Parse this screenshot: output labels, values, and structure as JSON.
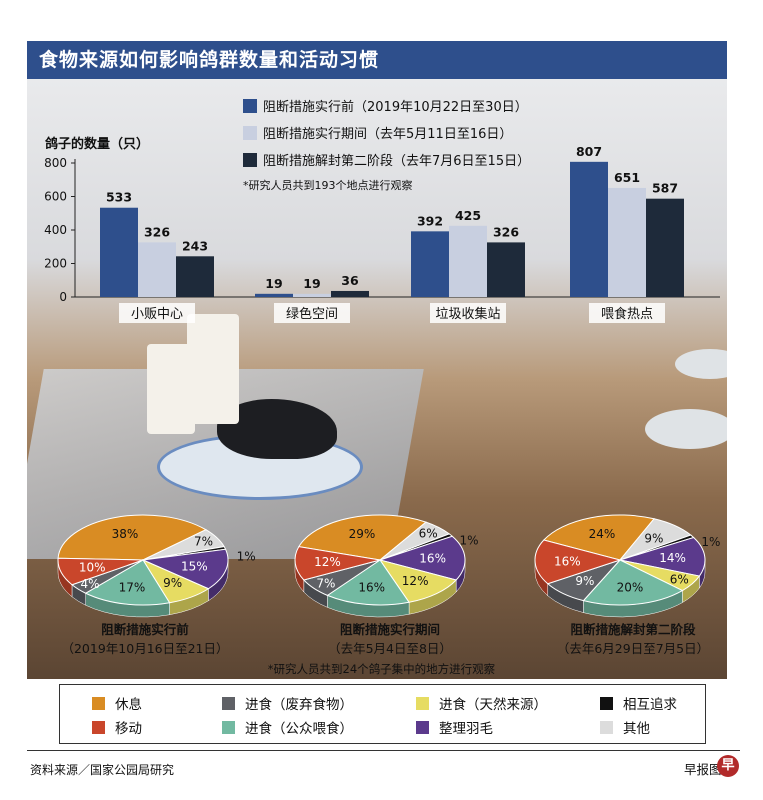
{
  "title": "食物来源如何影响鸽群数量和活动习惯",
  "colors": {
    "title_bg": "#2e4f8c",
    "before": "#2e4f8c",
    "during": "#c8cfe0",
    "after": "#1e2a3a",
    "rest": "#d98c23",
    "move": "#c9462b",
    "eat_waste": "#5f6166",
    "eat_public": "#72b9a1",
    "eat_natural": "#e6dc62",
    "groom": "#5b3a8c",
    "chase": "#111111",
    "other": "#dcdcdc"
  },
  "bar_legend": [
    {
      "label": "阻断措施实行前（2019年10月22日至30日）",
      "color": "#2e4f8c"
    },
    {
      "label": "阻断措施实行期间（去年5月11日至16日）",
      "color": "#c8cfe0"
    },
    {
      "label": "阻断措施解封第二阶段（去年7月6日至15日）",
      "color": "#1e2a3a"
    }
  ],
  "bar_note": "*研究人员共到193个地点进行观察",
  "pie_note": "*研究人员共到24个鸽子集中的地方进行观察",
  "category_legend": [
    {
      "label": "休息",
      "color": "#d98c23"
    },
    {
      "label": "进食（废弃食物）",
      "color": "#5f6166"
    },
    {
      "label": "进食（天然来源）",
      "color": "#e6dc62"
    },
    {
      "label": "相互追求",
      "color": "#111111"
    },
    {
      "label": "移动",
      "color": "#c9462b"
    },
    {
      "label": "进食（公众喂食）",
      "color": "#72b9a1"
    },
    {
      "label": "整理羽毛",
      "color": "#5b3a8c"
    },
    {
      "label": "其他",
      "color": "#dcdcdc"
    }
  ],
  "source": "资料来源／国家公园局研究",
  "brand": "早报图",
  "logo_char": "早",
  "chart_data": [
    {
      "type": "bar",
      "ylabel": "鸽子的数量（只）",
      "ylim": [
        0,
        800
      ],
      "yticks": [
        0,
        200,
        400,
        600,
        800
      ],
      "categories": [
        "小贩中心",
        "绿色空间",
        "垃圾收集站",
        "喂食热点"
      ],
      "series": [
        {
          "name": "阻断措施实行前（2019年10月22日至30日）",
          "values": [
            533,
            19,
            392,
            807
          ]
        },
        {
          "name": "阻断措施实行期间（去年5月11日至16日）",
          "values": [
            326,
            19,
            425,
            651
          ]
        },
        {
          "name": "阻断措施解封第二阶段（去年7月6日至15日）",
          "values": [
            243,
            36,
            326,
            587
          ]
        }
      ]
    },
    {
      "type": "pie",
      "title": "阻断措施实行前",
      "subtitle": "（2019年10月16日至21日）",
      "slices": [
        {
          "category": "休息",
          "value": 38
        },
        {
          "category": "其他",
          "value": 7
        },
        {
          "category": "相互追求",
          "value": 1
        },
        {
          "category": "整理羽毛",
          "value": 15
        },
        {
          "category": "进食（天然来源）",
          "value": 9
        },
        {
          "category": "进食（公众喂食）",
          "value": 17
        },
        {
          "category": "进食（废弃食物）",
          "value": 4
        },
        {
          "category": "移动",
          "value": 10
        }
      ]
    },
    {
      "type": "pie",
      "title": "阻断措施实行期间",
      "subtitle": "（去年5月4日至8日）",
      "slices": [
        {
          "category": "休息",
          "value": 29
        },
        {
          "category": "其他",
          "value": 6
        },
        {
          "category": "相互追求",
          "value": 1
        },
        {
          "category": "整理羽毛",
          "value": 16
        },
        {
          "category": "进食（天然来源）",
          "value": 12
        },
        {
          "category": "进食（公众喂食）",
          "value": 16
        },
        {
          "category": "进食（废弃食物）",
          "value": 7
        },
        {
          "category": "移动",
          "value": 12
        }
      ]
    },
    {
      "type": "pie",
      "title": "阻断措施解封第二阶段",
      "subtitle": "（去年6月29日至7月5日）",
      "slices": [
        {
          "category": "休息",
          "value": 24
        },
        {
          "category": "其他",
          "value": 9
        },
        {
          "category": "相互追求",
          "value": 1
        },
        {
          "category": "整理羽毛",
          "value": 14
        },
        {
          "category": "进食（天然来源）",
          "value": 6
        },
        {
          "category": "进食（公众喂食）",
          "value": 20
        },
        {
          "category": "进食（废弃食物）",
          "value": 9
        },
        {
          "category": "移动",
          "value": 16
        }
      ]
    }
  ]
}
